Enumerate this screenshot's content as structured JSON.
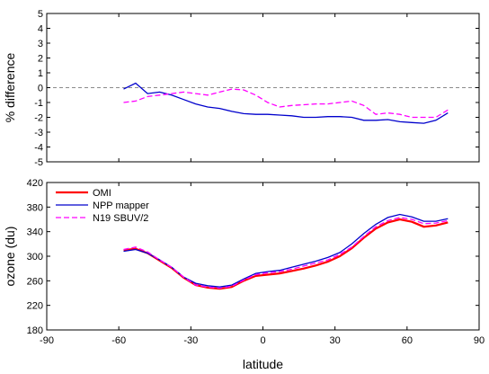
{
  "chart_data": [
    {
      "type": "line",
      "ylabel": "% difference",
      "xlim": [
        -90,
        90
      ],
      "ylim": [
        -5,
        5
      ],
      "xticks": [
        -90,
        -60,
        -30,
        0,
        30,
        60,
        90
      ],
      "yticks": [
        5,
        4,
        3,
        2,
        1,
        0,
        -1,
        -2,
        -3,
        -4,
        -5
      ],
      "xticks_labeled": false,
      "reference_line": 0,
      "series": [
        {
          "color": "#0000cc",
          "style": "solid",
          "x": [
            -58,
            -53,
            -48,
            -43,
            -38,
            -33,
            -28,
            -23,
            -18,
            -13,
            -8,
            -3,
            2,
            7,
            12,
            17,
            22,
            27,
            32,
            37,
            42,
            47,
            52,
            57,
            62,
            67,
            72,
            77
          ],
          "y": [
            -0.1,
            0.3,
            -0.4,
            -0.3,
            -0.5,
            -0.8,
            -1.1,
            -1.3,
            -1.4,
            -1.6,
            -1.75,
            -1.8,
            -1.8,
            -1.85,
            -1.9,
            -2.0,
            -2.0,
            -1.95,
            -1.95,
            -2.0,
            -2.2,
            -2.2,
            -2.15,
            -2.3,
            -2.35,
            -2.4,
            -2.2,
            -1.7
          ]
        },
        {
          "color": "#ff00ff",
          "style": "dashed",
          "x": [
            -58,
            -53,
            -48,
            -43,
            -38,
            -33,
            -28,
            -23,
            -18,
            -13,
            -8,
            -3,
            2,
            7,
            12,
            17,
            22,
            27,
            32,
            37,
            42,
            47,
            52,
            57,
            62,
            67,
            72,
            77
          ],
          "y": [
            -1.0,
            -0.9,
            -0.6,
            -0.5,
            -0.4,
            -0.3,
            -0.4,
            -0.5,
            -0.3,
            -0.1,
            -0.15,
            -0.5,
            -1.0,
            -1.3,
            -1.2,
            -1.15,
            -1.1,
            -1.1,
            -1.0,
            -0.9,
            -1.2,
            -1.8,
            -1.7,
            -1.8,
            -2.0,
            -2.0,
            -2.0,
            -1.5
          ]
        }
      ]
    },
    {
      "type": "line",
      "xlabel": "latitude",
      "ylabel": "ozone (du)",
      "xlim": [
        -90,
        90
      ],
      "ylim": [
        180,
        420
      ],
      "xticks": [
        -90,
        -60,
        -30,
        0,
        30,
        60,
        90
      ],
      "yticks": [
        180,
        220,
        260,
        300,
        340,
        380,
        420
      ],
      "legend_position": "top-left",
      "series": [
        {
          "name": "OMI",
          "color": "#ff0000",
          "style": "solid",
          "x": [
            -58,
            -53,
            -48,
            -43,
            -38,
            -33,
            -28,
            -23,
            -18,
            -13,
            -8,
            -3,
            2,
            7,
            12,
            17,
            22,
            27,
            32,
            37,
            42,
            47,
            52,
            57,
            62,
            67,
            72,
            77
          ],
          "y": [
            310,
            312,
            305,
            293,
            281,
            265,
            253,
            249,
            247,
            250,
            260,
            268,
            270,
            272,
            276,
            280,
            285,
            291,
            300,
            313,
            330,
            345,
            355,
            360,
            356,
            348,
            350,
            355
          ]
        },
        {
          "name": "NPP mapper",
          "color": "#0000cc",
          "style": "solid",
          "x": [
            -58,
            -53,
            -48,
            -43,
            -38,
            -33,
            -28,
            -23,
            -18,
            -13,
            -8,
            -3,
            2,
            7,
            12,
            17,
            22,
            27,
            32,
            37,
            42,
            47,
            52,
            57,
            62,
            67,
            72,
            77
          ],
          "y": [
            308,
            311,
            305,
            294,
            282,
            266,
            256,
            252,
            250,
            253,
            263,
            272,
            275,
            277,
            282,
            287,
            292,
            298,
            306,
            320,
            337,
            352,
            363,
            368,
            364,
            357,
            357,
            361
          ]
        },
        {
          "name": "N19 SBUV/2",
          "color": "#ff00ff",
          "style": "dashed",
          "x": [
            -58,
            -53,
            -48,
            -43,
            -38,
            -33,
            -28,
            -23,
            -18,
            -13,
            -8,
            -3,
            2,
            7,
            12,
            17,
            22,
            27,
            32,
            37,
            42,
            47,
            52,
            57,
            62,
            67,
            72,
            77
          ],
          "y": [
            311,
            315,
            307,
            294,
            282,
            266,
            253,
            250,
            248,
            251,
            261,
            270,
            273,
            275,
            279,
            284,
            289,
            294,
            303,
            315,
            332,
            348,
            358,
            363,
            360,
            353,
            354,
            358
          ]
        }
      ]
    }
  ]
}
